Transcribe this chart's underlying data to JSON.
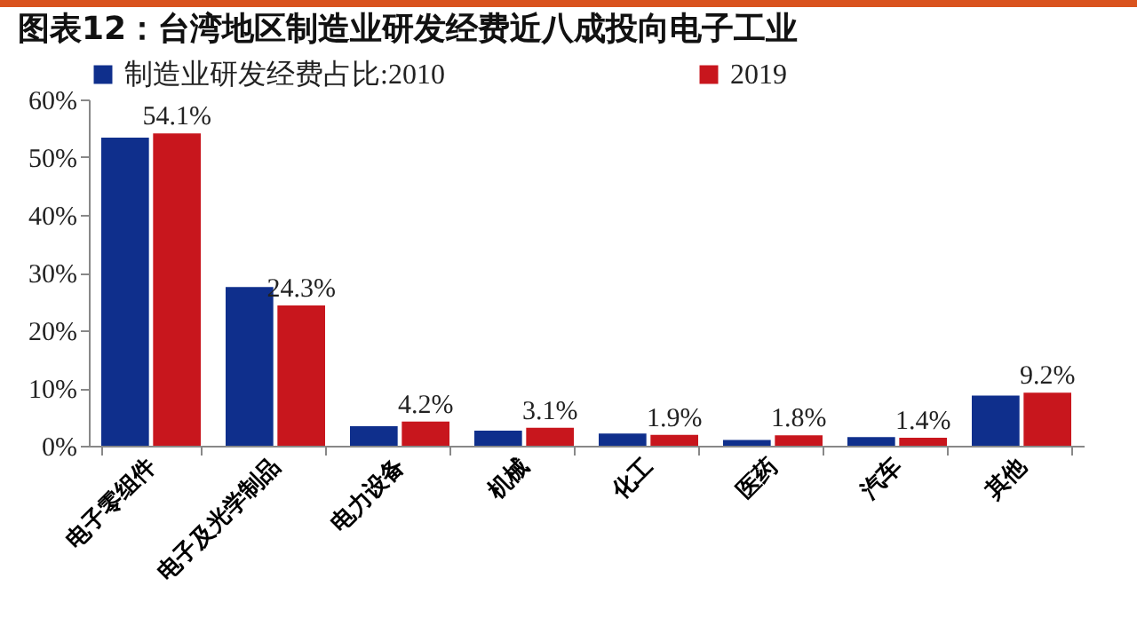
{
  "chart_data": {
    "type": "bar",
    "title": "图表12：台湾地区制造业研发经费近八成投向电子工业",
    "categories": [
      "电子零组件",
      "电子及光学制品",
      "电力设备",
      "机械",
      "化工",
      "医药",
      "汽车",
      "其他"
    ],
    "series": [
      {
        "name": "制造业研发经费占比:2010",
        "color": "#0f2f8c",
        "values": [
          53.4,
          27.5,
          3.4,
          2.6,
          2.1,
          1.0,
          1.5,
          8.7
        ]
      },
      {
        "name": "2019",
        "color": "#c8161d",
        "values": [
          54.1,
          24.3,
          4.2,
          3.1,
          1.9,
          1.8,
          1.4,
          9.2
        ],
        "value_labels": [
          "54.1%",
          "24.3%",
          "4.2%",
          "3.1%",
          "1.9%",
          "1.8%",
          "1.4%",
          "9.2%"
        ]
      }
    ],
    "ylim": [
      0,
      60
    ],
    "yticks": [
      {
        "value": 0,
        "label": "0%"
      },
      {
        "value": 10,
        "label": "10%"
      },
      {
        "value": 20,
        "label": "20%"
      },
      {
        "value": 30,
        "label": "30%"
      },
      {
        "value": 40,
        "label": "40%"
      },
      {
        "value": 50,
        "label": "50%"
      },
      {
        "value": 60,
        "label": "60%"
      }
    ],
    "grid": false,
    "legend": "top"
  }
}
